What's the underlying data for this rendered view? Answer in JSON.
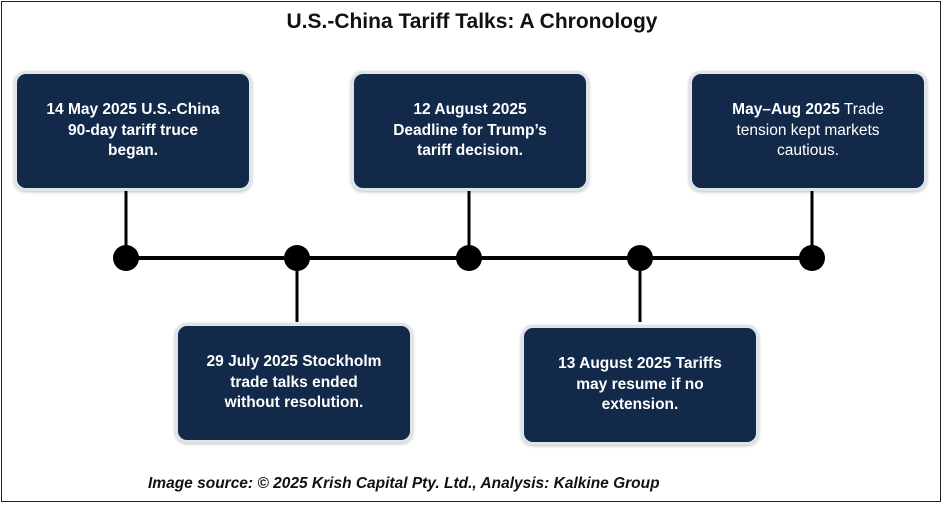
{
  "title": "U.S.-China Tariff Talks: A Chronology",
  "events": [
    {
      "text": "14 May 2025 U.S.-China\n90-day tariff truce\nbegan.",
      "bold_prefix": "",
      "rest": ""
    },
    {
      "text": "29 July 2025  Stockholm\ntrade talks ended\nwithout resolution.",
      "bold_prefix": "",
      "rest": ""
    },
    {
      "text": "12 August 2025\nDeadline for Trump’s\ntariff decision.",
      "bold_prefix": "",
      "rest": ""
    },
    {
      "text": "13 August 2025  Tariffs\nmay resume if no\nextension.",
      "bold_prefix": "",
      "rest": ""
    },
    {
      "bold_prefix": "May–Aug 2025",
      "rest": "  Trade\ntension kept markets\ncautious."
    }
  ],
  "source": "Image source: © 2025 Krish Capital Pty. Ltd., Analysis: Kalkine Group",
  "colors": {
    "box_fill": "#12294a",
    "box_border": "#dfe4ea",
    "line": "#000000"
  }
}
